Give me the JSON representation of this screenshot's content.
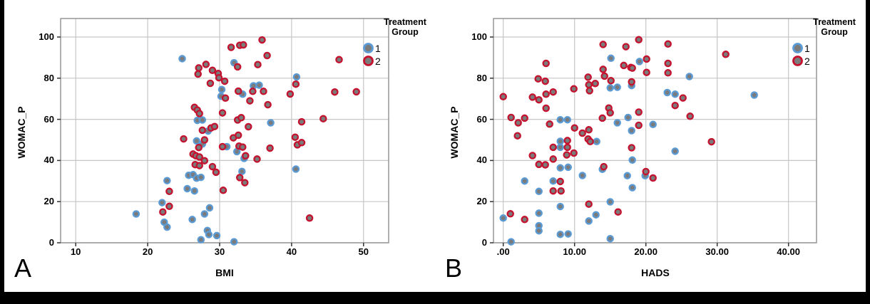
{
  "page": {
    "background": "#000000",
    "panel_background": "#ffffff",
    "grid_color": "#c6c6c6",
    "frame_color": "#8f8f8f",
    "tick_color": "#333333",
    "marker_fill": "#7b7b7b",
    "group1_color": "#5b9bd5",
    "group2_color": "#c4122f"
  },
  "legend": {
    "title_line1": "Treatment",
    "title_line2": "Group",
    "items": [
      {
        "label": "1",
        "color_key": "group1_color"
      },
      {
        "label": "2",
        "color_key": "group2_color"
      }
    ]
  },
  "chart_data": [
    {
      "type": "scatter",
      "panel": "A",
      "xlabel": "BMI",
      "ylabel": "WOMAC_P",
      "grid": true,
      "legend_position": "outside-top-right",
      "xlim": [
        7.9,
        53.49
      ],
      "ylim": [
        0,
        109
      ],
      "x_ticks": [
        {
          "v": 10,
          "label": "10"
        },
        {
          "v": 20,
          "label": "20"
        },
        {
          "v": 30,
          "label": "30"
        },
        {
          "v": 40,
          "label": "40"
        },
        {
          "v": 50,
          "label": "50"
        }
      ],
      "y_ticks": [
        {
          "v": 0,
          "label": "0"
        },
        {
          "v": 20,
          "label": "20"
        },
        {
          "v": 40,
          "label": "40"
        },
        {
          "v": 60,
          "label": "60"
        },
        {
          "v": 80,
          "label": "80"
        },
        {
          "v": 100,
          "label": "100"
        }
      ],
      "series": [
        {
          "name": "1",
          "color_key": "group1_color",
          "points": [
            [
              18.4,
              14
            ],
            [
              22,
              19.5
            ],
            [
              22.3,
              10
            ],
            [
              22.7,
              7.6
            ],
            [
              22.7,
              30.2
            ],
            [
              24.8,
              89.5
            ],
            [
              25.7,
              32.8
            ],
            [
              26.3,
              33.1
            ],
            [
              26.8,
              31.4
            ],
            [
              27.4,
              31.8
            ],
            [
              25.5,
              26.3
            ],
            [
              26.5,
              25.2
            ],
            [
              26.2,
              11.3
            ],
            [
              27.9,
              14
            ],
            [
              28.6,
              17
            ],
            [
              28.3,
              6
            ],
            [
              28.5,
              4
            ],
            [
              29.6,
              3.5
            ],
            [
              27.4,
              1.5
            ],
            [
              32,
              0.5
            ],
            [
              26.9,
              59.5
            ],
            [
              27.6,
              59.7
            ],
            [
              26.8,
              49.5
            ],
            [
              27.6,
              48
            ],
            [
              28.4,
              54.3
            ],
            [
              30.2,
              71.2
            ],
            [
              30.3,
              74.5
            ],
            [
              32,
              87.5
            ],
            [
              32.4,
              44.3
            ],
            [
              33.4,
              41
            ],
            [
              33.1,
              34.7
            ],
            [
              33.2,
              72.2
            ],
            [
              34.7,
              76.3
            ],
            [
              35.5,
              76.6
            ],
            [
              37.1,
              58.3
            ],
            [
              40.6,
              35.8
            ],
            [
              40.7,
              80.6
            ],
            [
              31,
              46.7
            ]
          ]
        },
        {
          "name": "2",
          "color_key": "group2_color",
          "points": [
            [
              23,
              25
            ],
            [
              22.1,
              15
            ],
            [
              23,
              17.7
            ],
            [
              25,
              50.5
            ],
            [
              26.5,
              65.8
            ],
            [
              26.9,
              64.5
            ],
            [
              27.2,
              62.8
            ],
            [
              26.6,
              38
            ],
            [
              27.2,
              37.5
            ],
            [
              26.3,
              43.1
            ],
            [
              26.7,
              42.3
            ],
            [
              27.2,
              41.7
            ],
            [
              27.9,
              39.9
            ],
            [
              27.9,
              50
            ],
            [
              27.1,
              46.3
            ],
            [
              27.6,
              54.7
            ],
            [
              28.8,
              55.8
            ],
            [
              29.3,
              56.5
            ],
            [
              29,
              37
            ],
            [
              29.5,
              34.3
            ],
            [
              30.5,
              25.5
            ],
            [
              27.1,
              85
            ],
            [
              28.1,
              86.7
            ],
            [
              27,
              82
            ],
            [
              29.8,
              82.3
            ],
            [
              29.9,
              80.2
            ],
            [
              28.7,
              77.5
            ],
            [
              30.7,
              78.5
            ],
            [
              29,
              83.8
            ],
            [
              30.4,
              63.1
            ],
            [
              32.5,
              59.7
            ],
            [
              33,
              60.8
            ],
            [
              30.8,
              70.3
            ],
            [
              30.4,
              46.7
            ],
            [
              31.9,
              51
            ],
            [
              32.6,
              52.3
            ],
            [
              32.7,
              47
            ],
            [
              33.2,
              46.5
            ],
            [
              33.6,
              42.3
            ],
            [
              32.8,
              31.7
            ],
            [
              33.5,
              29.2
            ],
            [
              34,
              56.4
            ],
            [
              35.2,
              40.7
            ],
            [
              34.2,
              69
            ],
            [
              34.6,
              73.6
            ],
            [
              32.6,
              73.7
            ],
            [
              32.5,
              85.5
            ],
            [
              32.8,
              96
            ],
            [
              33.3,
              96.2
            ],
            [
              31.6,
              95
            ],
            [
              35.9,
              98.6
            ],
            [
              36.6,
              91
            ],
            [
              35.3,
              86.6
            ],
            [
              36.1,
              73.6
            ],
            [
              36.7,
              67.1
            ],
            [
              37,
              46
            ],
            [
              39.8,
              72.3
            ],
            [
              40.5,
              51.3
            ],
            [
              40.8,
              47.6
            ],
            [
              41.4,
              48.7
            ],
            [
              40.6,
              77.1
            ],
            [
              41.4,
              58.8
            ],
            [
              44.4,
              60.3
            ],
            [
              42.5,
              12
            ],
            [
              46,
              73.3
            ],
            [
              49,
              73.4
            ],
            [
              46.6,
              89
            ]
          ]
        }
      ]
    },
    {
      "type": "scatter",
      "panel": "B",
      "xlabel": "HADS",
      "ylabel": "WOMAC_P",
      "grid": true,
      "legend_position": "outside-top-right",
      "xlim": [
        -1.37,
        43.93
      ],
      "ylim": [
        0,
        109
      ],
      "x_ticks": [
        {
          "v": 0,
          "label": ".00"
        },
        {
          "v": 10,
          "label": "10.00"
        },
        {
          "v": 20,
          "label": "20.00"
        },
        {
          "v": 30,
          "label": "30.00"
        },
        {
          "v": 40,
          "label": "40.00"
        }
      ],
      "y_ticks": [
        {
          "v": 0,
          "label": "0"
        },
        {
          "v": 20,
          "label": "20"
        },
        {
          "v": 40,
          "label": "40"
        },
        {
          "v": 60,
          "label": "60"
        },
        {
          "v": 80,
          "label": "80"
        },
        {
          "v": 100,
          "label": "100"
        }
      ],
      "series": [
        {
          "name": "1",
          "color_key": "group1_color",
          "points": [
            [
              0,
              12
            ],
            [
              1.1,
              0.5
            ],
            [
              3,
              30
            ],
            [
              5,
              25
            ],
            [
              5,
              14.4
            ],
            [
              5,
              8.3
            ],
            [
              5,
              5.8
            ],
            [
              8,
              4.1
            ],
            [
              9.1,
              4.3
            ],
            [
              8,
              17.6
            ],
            [
              12,
              10.6
            ],
            [
              13,
              13.6
            ],
            [
              15,
              2
            ],
            [
              15,
              19.9
            ],
            [
              11.1,
              32.7
            ],
            [
              8,
              36.4
            ],
            [
              9.1,
              36.7
            ],
            [
              13.9,
              35.7
            ],
            [
              7,
              30
            ],
            [
              8,
              59.8
            ],
            [
              9,
              59.8
            ],
            [
              8,
              49.3
            ],
            [
              8,
              46.4
            ],
            [
              13.1,
              49.2
            ],
            [
              16,
              58.3
            ],
            [
              15.1,
              89.7
            ],
            [
              15,
              75.3
            ],
            [
              16,
              75.6
            ],
            [
              17.5,
              60.9
            ],
            [
              18,
              54.5
            ],
            [
              18,
              76.4
            ],
            [
              19.1,
              88.1
            ],
            [
              21,
              57.5
            ],
            [
              23,
              73
            ],
            [
              24.1,
              72.2
            ],
            [
              26.1,
              80.8
            ],
            [
              35.2,
              71.8
            ],
            [
              24.1,
              44.5
            ],
            [
              18.1,
              40.2
            ],
            [
              17.4,
              32.6
            ],
            [
              19.9,
              32.6
            ],
            [
              18.1,
              26.8
            ]
          ]
        },
        {
          "name": "2",
          "color_key": "group2_color",
          "points": [
            [
              0,
              71
            ],
            [
              1,
              14.1
            ],
            [
              3,
              11.3
            ],
            [
              1.1,
              60.9
            ],
            [
              2.1,
              58.3
            ],
            [
              3,
              60.6
            ],
            [
              2,
              52
            ],
            [
              4.1,
              70.8
            ],
            [
              5,
              69.5
            ],
            [
              4.9,
              79.7
            ],
            [
              5.9,
              78.5
            ],
            [
              6,
              87.2
            ],
            [
              6,
              72.2
            ],
            [
              7,
              73.3
            ],
            [
              6,
              65.4
            ],
            [
              6.5,
              57.7
            ],
            [
              4.1,
              42.4
            ],
            [
              5,
              38.1
            ],
            [
              5.9,
              37.9
            ],
            [
              7,
              40.7
            ],
            [
              7,
              46.4
            ],
            [
              9,
              49.7
            ],
            [
              9,
              46.4
            ],
            [
              8.9,
              42.7
            ],
            [
              9.9,
              43.6
            ],
            [
              7,
              25.2
            ],
            [
              8.1,
              25.2
            ],
            [
              8,
              29.8
            ],
            [
              9.9,
              74.8
            ],
            [
              10,
              55.8
            ],
            [
              11.1,
              53.3
            ],
            [
              12,
              54.9
            ],
            [
              11.9,
              50.4
            ],
            [
              12.2,
              49.2
            ],
            [
              11.9,
              80.5
            ],
            [
              12,
              76.8
            ],
            [
              12.9,
              77.4
            ],
            [
              12.1,
              73.9
            ],
            [
              12,
              18.8
            ],
            [
              14.1,
              37
            ],
            [
              13.9,
              60.6
            ],
            [
              14.8,
              65.5
            ],
            [
              15,
              63.2
            ],
            [
              14,
              84.3
            ],
            [
              14.2,
              81
            ],
            [
              14,
              96.4
            ],
            [
              15.1,
              78.8
            ],
            [
              16.1,
              15
            ],
            [
              17.2,
              95.3
            ],
            [
              16.9,
              86.2
            ],
            [
              17.9,
              85.2
            ],
            [
              18,
              78.2
            ],
            [
              18.1,
              84.9
            ],
            [
              18,
              46.2
            ],
            [
              19,
              98.7
            ],
            [
              19,
              63.5
            ],
            [
              19,
              57.1
            ],
            [
              20.1,
              89.3
            ],
            [
              20.1,
              82.8
            ],
            [
              20,
              34.6
            ],
            [
              21,
              31.5
            ],
            [
              23.1,
              96.6
            ],
            [
              23.1,
              87.2
            ],
            [
              23.1,
              82.6
            ],
            [
              24.1,
              66.7
            ],
            [
              25.2,
              70.4
            ],
            [
              26.2,
              61.5
            ],
            [
              29.2,
              49.1
            ],
            [
              31.2,
              91.6
            ]
          ]
        }
      ]
    }
  ]
}
